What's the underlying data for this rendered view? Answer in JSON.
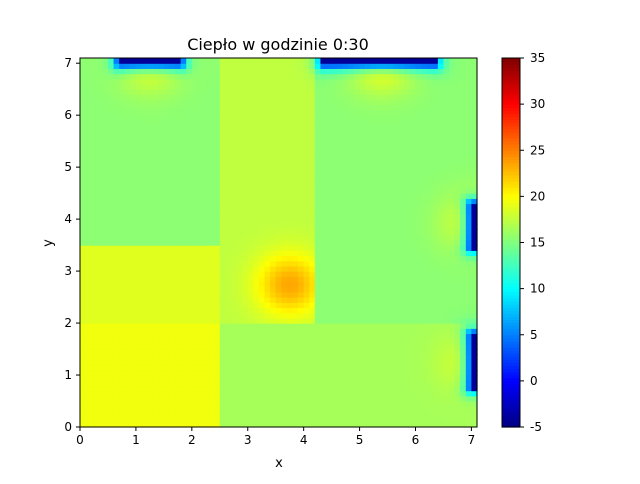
{
  "chart_data": {
    "type": "heatmap",
    "title": "Ciepło w godzinie 0:30",
    "xlabel": "x",
    "ylabel": "y",
    "xlim": [
      0,
      7.1
    ],
    "ylim": [
      0,
      7.1
    ],
    "x_ticks": [
      0,
      1,
      2,
      3,
      4,
      5,
      6,
      7
    ],
    "y_ticks": [
      0,
      1,
      2,
      3,
      4,
      5,
      6,
      7
    ],
    "colormap": "jet",
    "colorbar": {
      "min": -5,
      "max": 35,
      "ticks": [
        -5,
        0,
        5,
        10,
        15,
        20,
        25,
        30,
        35
      ]
    },
    "regions": [
      {
        "x": [
          0,
          2.45
        ],
        "y": [
          0,
          2.05
        ],
        "value": 19.5
      },
      {
        "x": [
          0,
          2.45
        ],
        "y": [
          2.05,
          3.55
        ],
        "value": 18.8
      },
      {
        "x": [
          0,
          2.45
        ],
        "y": [
          3.55,
          7.1
        ],
        "value": 15.5
      },
      {
        "x": [
          2.45,
          4.25
        ],
        "y": [
          2.05,
          7.1
        ],
        "value": 17.5
      },
      {
        "x": [
          2.45,
          7.1
        ],
        "y": [
          0,
          2.05
        ],
        "value": 16.5
      },
      {
        "x": [
          4.25,
          7.1
        ],
        "y": [
          2.05,
          7.1
        ],
        "value": 15.5
      }
    ],
    "heat_sources": [
      {
        "x": 3.75,
        "y": 2.75,
        "peak": 23.5
      },
      {
        "x": 1.25,
        "y": 7.1,
        "peak": 20
      },
      {
        "x": 5.4,
        "y": 7.1,
        "peak": 21
      },
      {
        "x": 7.05,
        "y": 3.95,
        "peak": 19
      },
      {
        "x": 7.05,
        "y": 1.25,
        "peak": 19
      }
    ],
    "cold_windows": [
      {
        "x": [
          0.7,
          1.8
        ],
        "y": [
          7.0,
          7.1
        ],
        "value": -4
      },
      {
        "x": [
          4.35,
          6.35
        ],
        "y": [
          7.0,
          7.1
        ],
        "value": -4
      },
      {
        "x": [
          7.0,
          7.1
        ],
        "y": [
          3.45,
          4.3
        ],
        "value": -4
      },
      {
        "x": [
          7.0,
          7.1
        ],
        "y": [
          0.75,
          1.8
        ],
        "value": -4
      }
    ]
  }
}
